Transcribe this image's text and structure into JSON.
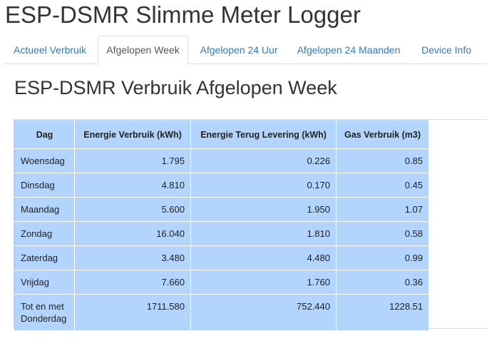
{
  "app": {
    "title": "ESP-DSMR Slimme Meter Logger"
  },
  "tabs": [
    {
      "label": "Actueel Verbruik",
      "active": false
    },
    {
      "label": "Afgelopen Week",
      "active": true
    },
    {
      "label": "Afgelopen 24 Uur",
      "active": false
    },
    {
      "label": "Afgelopen 24 Maanden",
      "active": false
    },
    {
      "label": "Device Info",
      "active": false
    }
  ],
  "main": {
    "heading": "ESP-DSMR Verbruik Afgelopen Week",
    "table": {
      "headers": [
        "Dag",
        "Energie Verbruik (kWh)",
        "Energie Terug Levering (kWh)",
        "Gas Verbruik (m3)"
      ],
      "rows": [
        [
          "Woensdag",
          "1.795",
          "0.226",
          "0.85"
        ],
        [
          "Dinsdag",
          "4.810",
          "0.170",
          "0.45"
        ],
        [
          "Maandag",
          "5.600",
          "1.950",
          "1.07"
        ],
        [
          "Zondag",
          "16.040",
          "1.810",
          "0.58"
        ],
        [
          "Zaterdag",
          "3.480",
          "4.480",
          "0.99"
        ],
        [
          "Vrijdag",
          "7.660",
          "1.760",
          "0.36"
        ]
      ],
      "total": {
        "day_line1": "Tot en met",
        "day_line2": "Donderdag",
        "values": [
          "1711.580",
          "752.440",
          "1228.51"
        ]
      }
    }
  },
  "colors": {
    "table_bg": "#b3d4fc",
    "link": "#337ab7",
    "active_tab_text": "#555555"
  }
}
